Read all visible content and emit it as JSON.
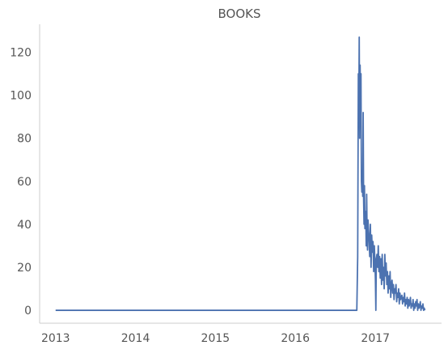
{
  "chart_data": {
    "type": "line",
    "title": "BOOKS",
    "xlabel": "",
    "ylabel": "",
    "x_ticks": [
      "2013",
      "2014",
      "2015",
      "2016",
      "2017"
    ],
    "y_ticks": [
      "0",
      "20",
      "40",
      "60",
      "80",
      "100",
      "120"
    ],
    "xlim": [
      "2012-10-20",
      "2017-10-30"
    ],
    "ylim": [
      -6,
      133
    ],
    "grid": false,
    "legend": "none",
    "series": [
      {
        "color": "#4c72b0",
        "x": [
          "2013-01-01",
          "2016-10-01",
          "2016-10-08",
          "2016-10-12",
          "2016-10-15",
          "2016-10-17",
          "2016-10-19",
          "2016-10-21",
          "2016-10-23",
          "2016-10-25",
          "2016-10-27",
          "2016-10-29",
          "2016-10-31",
          "2016-11-02",
          "2016-11-04",
          "2016-11-06",
          "2016-11-08",
          "2016-11-10",
          "2016-11-12",
          "2016-11-14",
          "2016-11-16",
          "2016-11-18",
          "2016-11-20",
          "2016-11-22",
          "2016-11-24",
          "2016-11-26",
          "2016-11-28",
          "2016-11-30",
          "2016-12-03",
          "2016-12-06",
          "2016-12-09",
          "2016-12-12",
          "2016-12-15",
          "2016-12-18",
          "2016-12-21",
          "2016-12-24",
          "2016-12-27",
          "2016-12-30",
          "2017-01-01",
          "2017-01-03",
          "2017-01-05",
          "2017-01-08",
          "2017-01-11",
          "2017-01-14",
          "2017-01-17",
          "2017-01-20",
          "2017-01-23",
          "2017-01-26",
          "2017-01-29",
          "2017-02-01",
          "2017-02-04",
          "2017-02-07",
          "2017-02-10",
          "2017-02-13",
          "2017-02-16",
          "2017-02-19",
          "2017-02-22",
          "2017-02-25",
          "2017-02-28",
          "2017-03-03",
          "2017-03-06",
          "2017-03-09",
          "2017-03-12",
          "2017-03-15",
          "2017-03-18",
          "2017-03-21",
          "2017-03-24",
          "2017-03-27",
          "2017-03-30",
          "2017-04-02",
          "2017-04-05",
          "2017-04-08",
          "2017-04-11",
          "2017-04-14",
          "2017-04-17",
          "2017-04-20",
          "2017-04-23",
          "2017-04-26",
          "2017-04-29",
          "2017-05-02",
          "2017-05-05",
          "2017-05-08",
          "2017-05-11",
          "2017-05-14",
          "2017-05-17",
          "2017-05-20",
          "2017-05-23",
          "2017-05-26",
          "2017-05-29",
          "2017-06-01",
          "2017-06-04",
          "2017-06-07",
          "2017-06-10",
          "2017-06-13",
          "2017-06-16",
          "2017-06-19",
          "2017-06-22",
          "2017-06-25",
          "2017-06-28",
          "2017-07-01",
          "2017-07-04",
          "2017-07-07",
          "2017-07-10",
          "2017-07-13",
          "2017-07-16",
          "2017-07-19",
          "2017-07-22",
          "2017-07-25",
          "2017-07-28",
          "2017-07-31",
          "2017-08-03",
          "2017-08-06",
          "2017-08-09",
          "2017-08-12",
          "2017-08-15"
        ],
        "y": [
          0,
          0,
          0,
          25,
          110,
          88,
          127,
          80,
          114,
          95,
          110,
          60,
          55,
          65,
          53,
          92,
          52,
          40,
          58,
          38,
          46,
          44,
          30,
          54,
          35,
          28,
          42,
          38,
          33,
          25,
          40,
          20,
          35,
          27,
          32,
          18,
          30,
          22,
          14,
          0,
          24,
          26,
          20,
          30,
          18,
          25,
          15,
          24,
          12,
          26,
          14,
          20,
          10,
          26,
          16,
          22,
          12,
          18,
          8,
          16,
          10,
          18,
          6,
          12,
          14,
          8,
          12,
          5,
          10,
          8,
          12,
          4,
          8,
          6,
          10,
          3,
          8,
          5,
          6,
          7,
          3,
          6,
          4,
          8,
          2,
          5,
          3,
          6,
          1,
          5,
          2,
          4,
          6,
          1,
          3,
          2,
          5,
          0,
          3,
          1,
          4,
          2,
          5,
          0,
          3,
          1,
          2,
          4,
          0,
          2,
          1,
          3,
          0,
          1,
          0
        ]
      }
    ]
  }
}
